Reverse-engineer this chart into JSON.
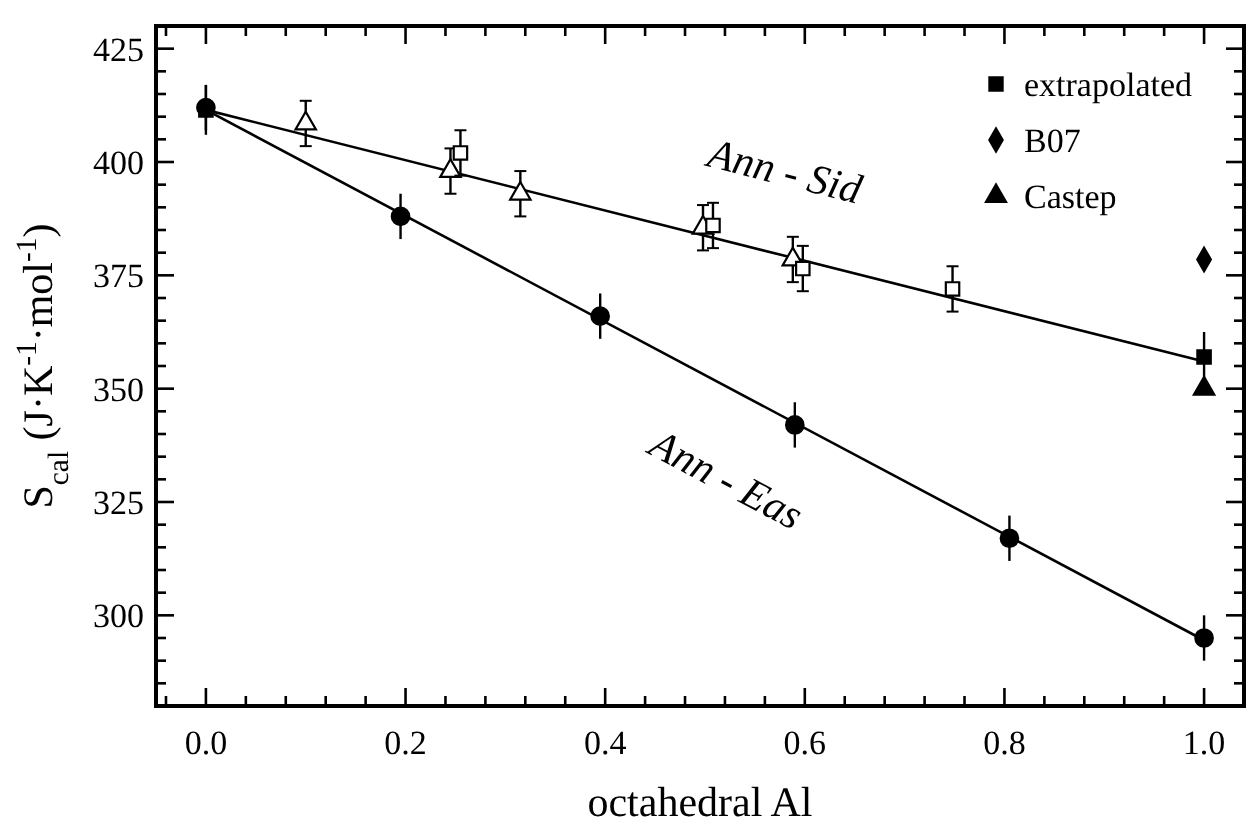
{
  "chart_data": {
    "type": "scatter",
    "xlabel": "octahedral Al",
    "ylabel": "S$_{cal}$ (J·K$^{-1}$·mol$^{-1}$)",
    "xlim": [
      -0.05,
      1.04
    ],
    "ylim": [
      280,
      430
    ],
    "xticks": [
      {
        "value": -0.04,
        "label": null
      },
      {
        "value": 0,
        "label": "0.0"
      },
      {
        "value": 0.04,
        "label": null
      },
      {
        "value": 0.08,
        "label": null
      },
      {
        "value": 0.12,
        "label": null
      },
      {
        "value": 0.16,
        "label": null
      },
      {
        "value": 0.2,
        "label": "0.2"
      },
      {
        "value": 0.24,
        "label": null
      },
      {
        "value": 0.28,
        "label": null
      },
      {
        "value": 0.32,
        "label": null
      },
      {
        "value": 0.36,
        "label": null
      },
      {
        "value": 0.4,
        "label": "0.4"
      },
      {
        "value": 0.44,
        "label": null
      },
      {
        "value": 0.48,
        "label": null
      },
      {
        "value": 0.52,
        "label": null
      },
      {
        "value": 0.56,
        "label": null
      },
      {
        "value": 0.6,
        "label": "0.6"
      },
      {
        "value": 0.64,
        "label": null
      },
      {
        "value": 0.68,
        "label": null
      },
      {
        "value": 0.72,
        "label": null
      },
      {
        "value": 0.76,
        "label": null
      },
      {
        "value": 0.8,
        "label": "0.8"
      },
      {
        "value": 0.84,
        "label": null
      },
      {
        "value": 0.88,
        "label": null
      },
      {
        "value": 0.92,
        "label": null
      },
      {
        "value": 0.96,
        "label": null
      },
      {
        "value": 1,
        "label": "1.0"
      }
    ],
    "yticks": [
      {
        "value": 285,
        "label": null
      },
      {
        "value": 290,
        "label": null
      },
      {
        "value": 295,
        "label": null
      },
      300,
      {
        "value": 305,
        "label": null
      },
      {
        "value": 310,
        "label": null
      },
      {
        "value": 315,
        "label": null
      },
      {
        "value": 320,
        "label": null
      },
      325,
      {
        "value": 330,
        "label": null
      },
      {
        "value": 335,
        "label": null
      },
      {
        "value": 340,
        "label": null
      },
      {
        "value": 345,
        "label": null
      },
      350,
      {
        "value": 355,
        "label": null
      },
      {
        "value": 360,
        "label": null
      },
      {
        "value": 365,
        "label": null
      },
      {
        "value": 370,
        "label": null
      },
      375,
      {
        "value": 380,
        "label": null
      },
      {
        "value": 385,
        "label": null
      },
      {
        "value": 390,
        "label": null
      },
      {
        "value": 395,
        "label": null
      },
      400,
      {
        "value": 405,
        "label": null
      },
      {
        "value": 410,
        "label": null
      },
      {
        "value": 415,
        "label": null
      },
      {
        "value": 420,
        "label": null
      },
      425
    ],
    "grid": false,
    "legend": "top right",
    "series": [
      {
        "type": "line",
        "color": "#000000",
        "marker": "none",
        "x": [
          0,
          1
        ],
        "values": [
          411.5,
          356
        ]
      },
      {
        "type": "line",
        "color": "#000000",
        "marker": "none",
        "x": [
          0,
          1
        ],
        "values": [
          411.5,
          294.5
        ]
      },
      {
        "color": "#000000",
        "marker": "circle",
        "x": [
          0,
          0.195,
          0.395,
          0.59,
          0.805,
          1
        ],
        "values": [
          412,
          388,
          366,
          342,
          317,
          295
        ],
        "errors": [
          5,
          5,
          5,
          5,
          5,
          5
        ]
      },
      {
        "color": "#000000",
        "marker": "triangle",
        "x": [
          0.1,
          0.245,
          0.315,
          0.498,
          0.588
        ],
        "values": [
          408.5,
          398,
          393,
          385.5,
          378.5
        ],
        "errors": [
          5,
          5,
          5,
          5,
          5
        ]
      },
      {
        "color": "#000000",
        "marker": "square",
        "x": [
          0.255,
          0.508,
          0.598,
          0.748
        ],
        "values": [
          402,
          386,
          376.5,
          372
        ],
        "errors": [
          5,
          5,
          5,
          5
        ]
      },
      {
        "name": "extrapolated",
        "color": "#000000",
        "marker": "square",
        "x": [
          0,
          1
        ],
        "values": [
          411.5,
          357
        ],
        "errors": [
          5.5,
          5.5
        ]
      },
      {
        "name": "B07",
        "color": "#000000",
        "marker": "diamond",
        "x": [
          1
        ],
        "values": [
          378.5
        ]
      },
      {
        "name": "Castep",
        "color": "#000000",
        "marker": "triangle",
        "x": [
          1
        ],
        "values": [
          350
        ]
      }
    ],
    "annotations": [
      "Ann - Sid",
      "Ann - Eas"
    ]
  }
}
